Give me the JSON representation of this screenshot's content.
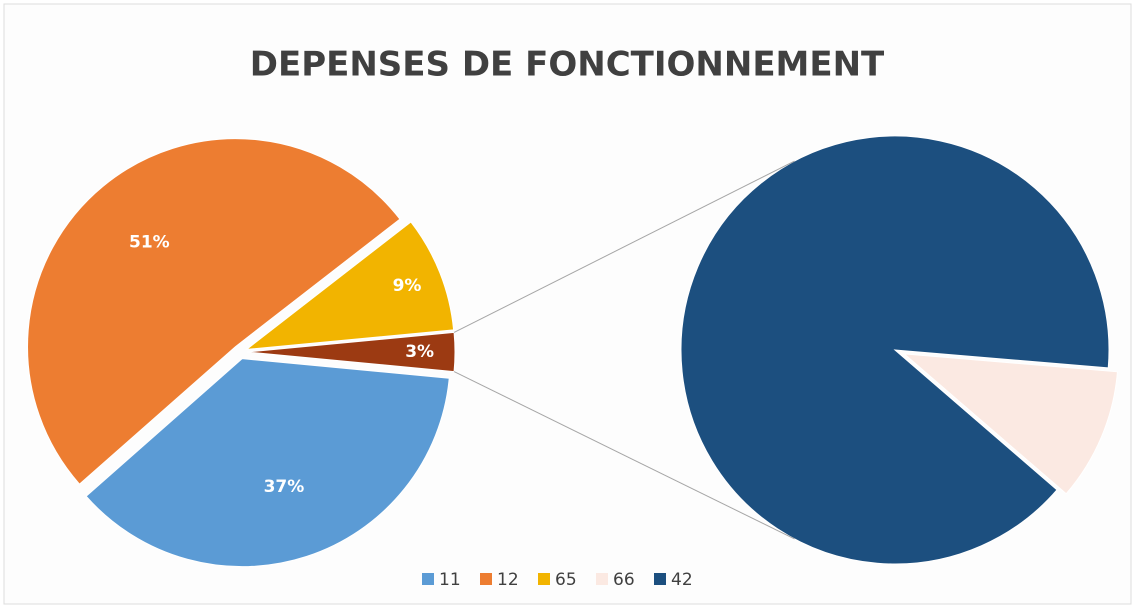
{
  "chart_data": {
    "type": "pie-of-pie",
    "title": "DEPENSES DE FONCTIONNEMENT",
    "categories": [
      "11",
      "12",
      "65",
      "66",
      "42"
    ],
    "values": [
      37,
      51,
      9,
      0.3,
      2.7
    ],
    "value_labels": [
      "37%",
      "51%",
      "9%",
      null,
      null
    ],
    "colors": [
      "#5b9bd5",
      "#ed7d31",
      "#f2b400",
      "#fbe9e2",
      "#1c4f7f"
    ],
    "other": {
      "value": 3,
      "label": "3%",
      "color": "#9c3a12"
    },
    "split": 2,
    "legend": "bottom"
  }
}
